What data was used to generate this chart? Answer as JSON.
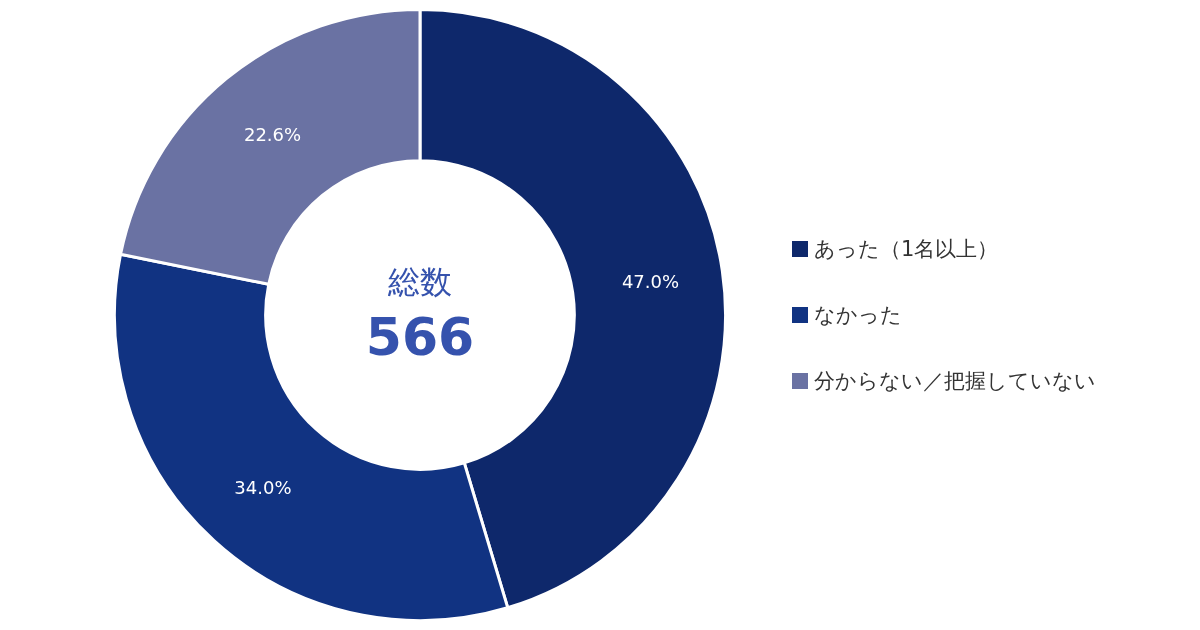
{
  "chart_data": {
    "type": "donut",
    "categories": [
      "あった（1名以上）",
      "なかった",
      "分からない／把握していない"
    ],
    "values": [
      47.0,
      34.0,
      22.6
    ],
    "value_labels": [
      "47.0%",
      "34.0%",
      "22.6%"
    ],
    "colors": [
      "#0e286b",
      "#113382",
      "#6a72a3"
    ],
    "annotations": [
      "総数",
      "566"
    ],
    "legend": "right"
  }
}
